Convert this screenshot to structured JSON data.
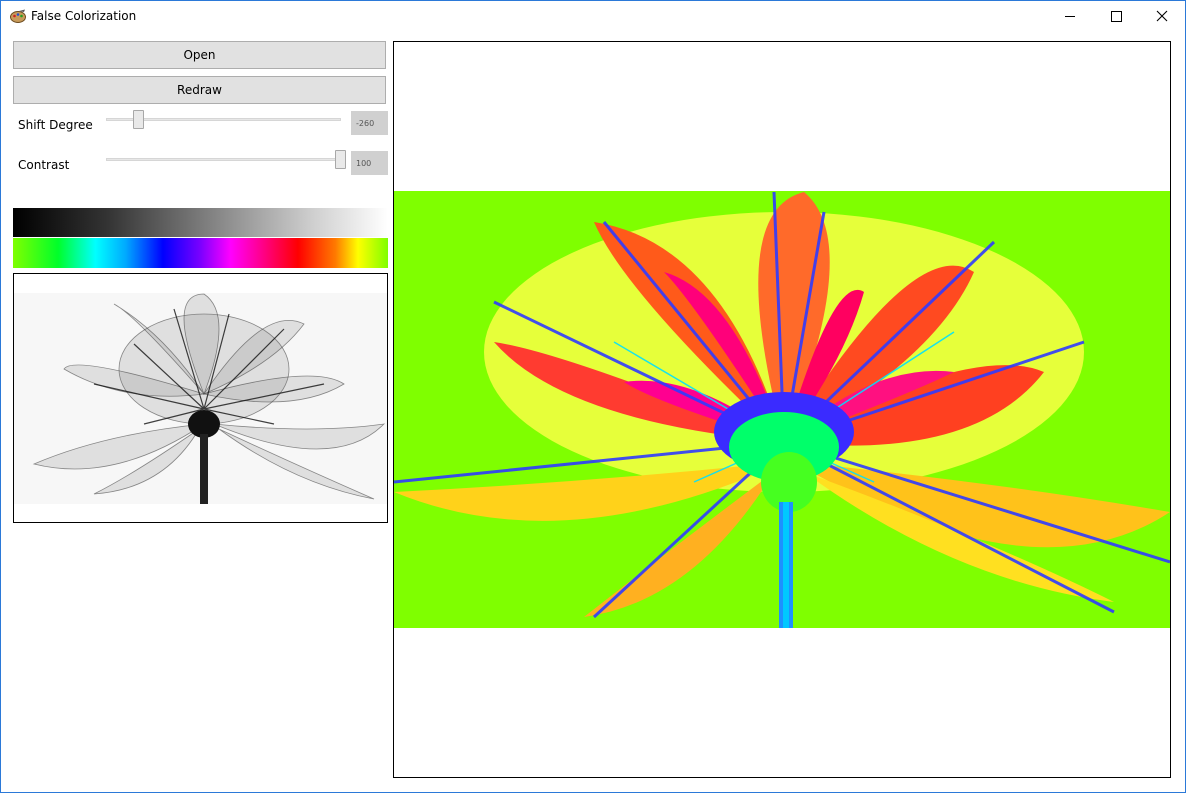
{
  "window": {
    "title": "False Colorization",
    "icon": "palette-icon",
    "controls": [
      "minimize-icon",
      "maximize-icon",
      "close-icon"
    ]
  },
  "buttons": {
    "open_label": "Open",
    "redraw_label": "Redraw"
  },
  "sliders": {
    "shift": {
      "label": "Shift Degree",
      "value": "-260",
      "min": -360,
      "max": 360
    },
    "contrast": {
      "label": "Contrast",
      "value": "100",
      "min": 0,
      "max": 100
    }
  },
  "colors": {
    "accent_border": "#2b79d8",
    "button_bg": "#e1e1e1",
    "false_color_background": "#7fff00"
  },
  "images": {
    "preview": "grayscale-xray-rose",
    "output": "false-color-rose"
  }
}
